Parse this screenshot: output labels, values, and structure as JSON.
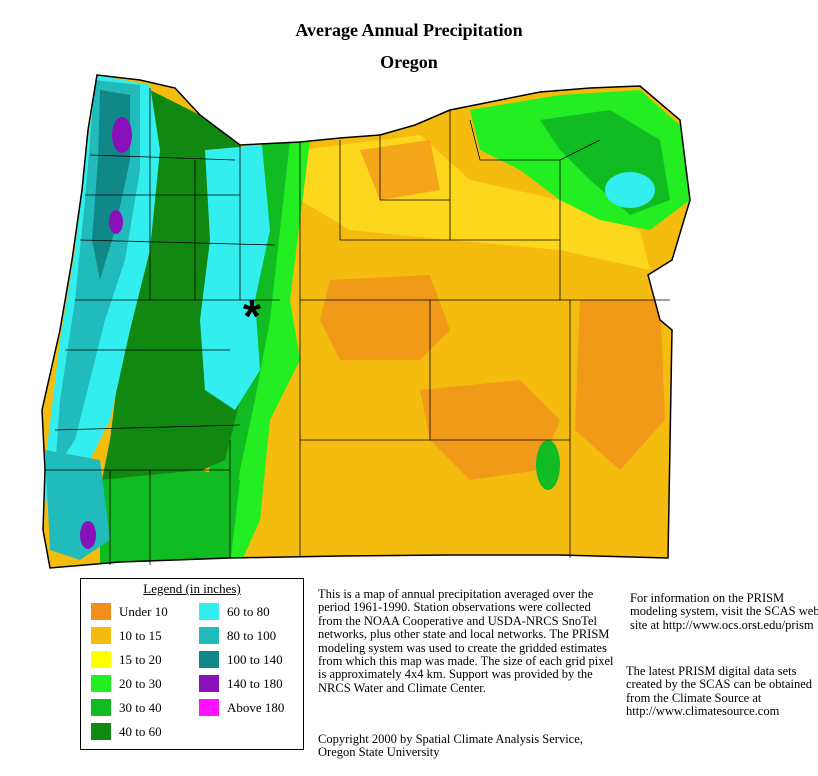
{
  "title": "Average Annual Precipitation",
  "subtitle": "Oregon",
  "legend": {
    "title": "Legend (in inches)",
    "items": [
      {
        "label": "Under 10",
        "color": "#f0901a"
      },
      {
        "label": "10 to 15",
        "color": "#f5bc10"
      },
      {
        "label": "15 to 20",
        "color": "#ffff00"
      },
      {
        "label": "20 to 30",
        "color": "#22ee22"
      },
      {
        "label": "30 to 40",
        "color": "#11bb22"
      },
      {
        "label": "40 to 60",
        "color": "#118811"
      },
      {
        "label": "60 to 80",
        "color": "#33eeee"
      },
      {
        "label": "80 to 100",
        "color": "#22bbbb"
      },
      {
        "label": "100 to 140",
        "color": "#118888"
      },
      {
        "label": "140 to 180",
        "color": "#8811bb"
      },
      {
        "label": "Above 180",
        "color": "#ff11ff"
      }
    ]
  },
  "description": "This is a map of annual precipitation averaged over the period 1961-1990. Station observations were collected from the NOAA Cooperative and USDA-NRCS SnoTel networks, plus other state and local networks.  The PRISM modeling system was used to create the gridded estimates from which this map was made.  The size of each grid pixel is approximately 4x4 km.  Support was provided by the NRCS Water and Climate Center.",
  "copyright": "Copyright 2000 by Spatial Climate Analysis Service, Oregon State University",
  "info_prism": "For information on the PRISM modeling system, visit the SCAS web site at http://www.ocs.orst.edu/prism",
  "info_data": "The latest PRISM digital data sets created by the SCAS can be obtained from the Climate Source at http://www.climatesource.com",
  "capital_marker": "*"
}
